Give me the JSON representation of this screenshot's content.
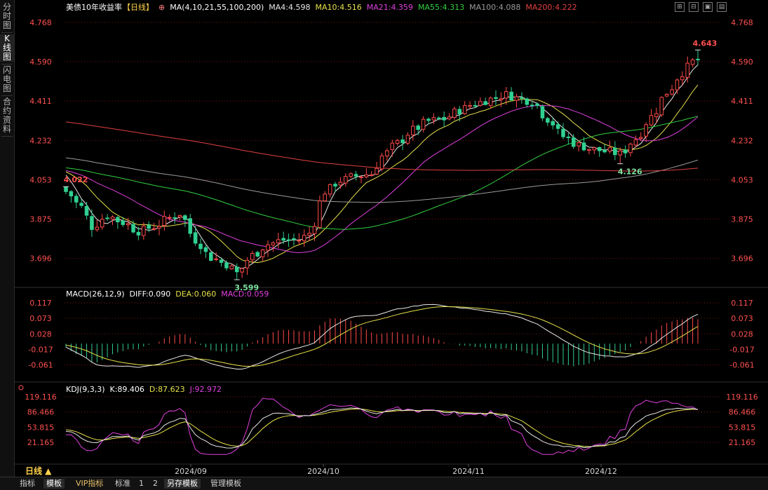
{
  "sidebar": {
    "tabs": [
      {
        "label": "分时图",
        "active": false
      },
      {
        "label": "K线图",
        "active": true
      },
      {
        "label": "闪电图",
        "active": false
      },
      {
        "label": "合约资料",
        "active": false
      }
    ]
  },
  "header": {
    "symbol": "美债10年收益率",
    "period": "【日线】",
    "ma_params": "MA(4,10,21,55,100,200)",
    "ma_values": [
      {
        "label": "MA4:4.598",
        "color": "#e8e8e8"
      },
      {
        "label": "MA10:4.516",
        "color": "#e6e24a"
      },
      {
        "label": "MA21:4.359",
        "color": "#e040e0"
      },
      {
        "label": "MA55:4.313",
        "color": "#30d040"
      },
      {
        "label": "MA100:4.088",
        "color": "#9a9a9a"
      },
      {
        "label": "MA200:4.222",
        "color": "#e04040"
      }
    ]
  },
  "macd_header": {
    "params": "MACD(26,12,9)",
    "diff": "DIFF:0.090",
    "dea": "DEA:0.060",
    "macd": "MACD:0.059"
  },
  "kdj_header": {
    "params": "KDJ(9,3,3)",
    "k": "K:89.406",
    "d": "D:87.623",
    "j": "J:92.972"
  },
  "period_button": "日线 ▲",
  "x_labels": [
    "2024/09",
    "2024/10",
    "2024/11",
    "2024/12"
  ],
  "bottom_tabs": [
    {
      "label": "指标",
      "active": false
    },
    {
      "label": "模板",
      "active": true
    },
    {
      "label": "VIP指标",
      "active": false,
      "vip": true
    },
    {
      "label": "标准",
      "active": false
    },
    {
      "label": "1",
      "active": false
    },
    {
      "label": "2",
      "active": false
    },
    {
      "label": "另存模板",
      "active": true
    },
    {
      "label": "管理模板",
      "active": false
    }
  ],
  "colors": {
    "up": "#ff4a4a",
    "down": "#30d090",
    "grid": "#7a1515",
    "axis_text": "#ff5050",
    "ma4": "#e8e8e8",
    "ma10": "#e6e24a",
    "ma21": "#e040e0",
    "ma55": "#30d040",
    "ma100": "#9a9a9a",
    "ma200": "#e04040"
  },
  "chart_data": [
    {
      "type": "candlestick",
      "title": "美债10年收益率【日线】",
      "ylim": [
        3.58,
        4.8
      ],
      "yticks": [
        4.768,
        4.59,
        4.411,
        4.232,
        4.053,
        3.875,
        3.696
      ],
      "annotations": [
        {
          "label": "4.022",
          "value": 4.022,
          "at_day": 0
        },
        {
          "label": "3.599",
          "value": 3.599,
          "at_day": 33
        },
        {
          "label": "4.126",
          "value": 4.126,
          "at_day": 107
        },
        {
          "label": "4.643",
          "value": 4.643,
          "at_day": 122
        }
      ],
      "anchors": [
        [
          0,
          4.0
        ],
        [
          3,
          3.93
        ],
        [
          5,
          3.84
        ],
        [
          8,
          3.89
        ],
        [
          11,
          3.86
        ],
        [
          14,
          3.82
        ],
        [
          17,
          3.84
        ],
        [
          20,
          3.88
        ],
        [
          22,
          3.9
        ],
        [
          25,
          3.78
        ],
        [
          28,
          3.7
        ],
        [
          31,
          3.67
        ],
        [
          33,
          3.63
        ],
        [
          36,
          3.71
        ],
        [
          39,
          3.76
        ],
        [
          42,
          3.78
        ],
        [
          45,
          3.78
        ],
        [
          47,
          3.81
        ],
        [
          50,
          4.0
        ],
        [
          53,
          4.05
        ],
        [
          56,
          4.07
        ],
        [
          59,
          4.08
        ],
        [
          61,
          4.16
        ],
        [
          64,
          4.22
        ],
        [
          67,
          4.28
        ],
        [
          70,
          4.32
        ],
        [
          73,
          4.33
        ],
        [
          76,
          4.37
        ],
        [
          79,
          4.4
        ],
        [
          82,
          4.42
        ],
        [
          85,
          4.44
        ],
        [
          88,
          4.42
        ],
        [
          90,
          4.41
        ],
        [
          93,
          4.33
        ],
        [
          96,
          4.25
        ],
        [
          99,
          4.21
        ],
        [
          102,
          4.19
        ],
        [
          105,
          4.18
        ],
        [
          107,
          4.17
        ],
        [
          110,
          4.24
        ],
        [
          113,
          4.34
        ],
        [
          116,
          4.45
        ],
        [
          119,
          4.54
        ],
        [
          121,
          4.59
        ],
        [
          122,
          4.6
        ]
      ],
      "days": 123
    },
    {
      "type": "macd",
      "yticks": [
        0.117,
        0.073,
        0.028,
        -0.017,
        -0.061
      ],
      "ylim": [
        -0.08,
        0.125
      ]
    },
    {
      "type": "kdj",
      "yticks": [
        119.116,
        86.466,
        53.815,
        21.165
      ],
      "ylim": [
        0,
        125
      ]
    }
  ]
}
